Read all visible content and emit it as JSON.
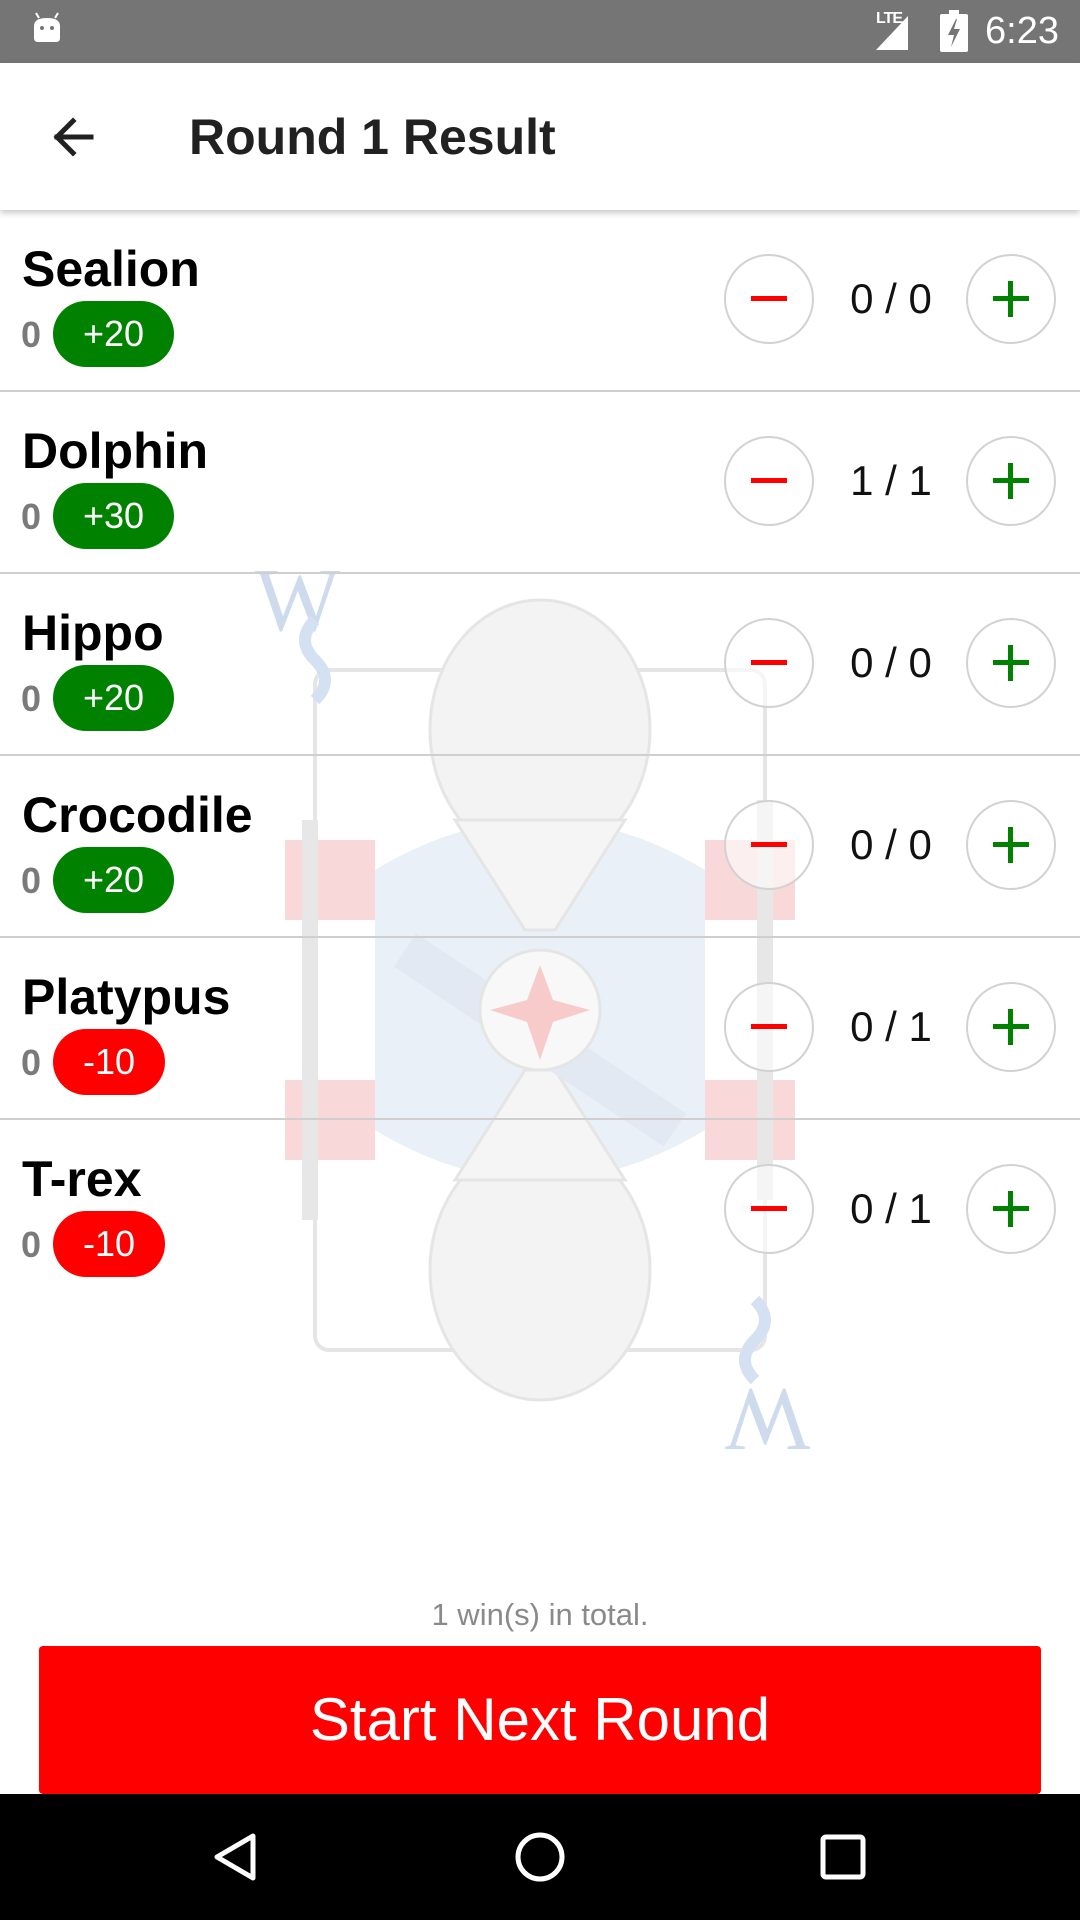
{
  "status_bar": {
    "network": "LTE",
    "time": "6:23",
    "icons": [
      "android-debug-icon",
      "signal-icon",
      "battery-charging-icon"
    ]
  },
  "app_bar": {
    "title": "Round 1 Result",
    "back_icon": "arrow-back-icon"
  },
  "colors": {
    "accent": "#ff0000",
    "positive": "#008200",
    "negative": "#ff0000",
    "status_bar": "#757575",
    "nav_bar": "#000000"
  },
  "players": [
    {
      "name": "Sealion",
      "score": "0",
      "delta": "+20",
      "delta_type": "positive",
      "tricks": "0 / 0"
    },
    {
      "name": "Dolphin",
      "score": "0",
      "delta": "+30",
      "delta_type": "positive",
      "tricks": "1 / 1"
    },
    {
      "name": "Hippo",
      "score": "0",
      "delta": "+20",
      "delta_type": "positive",
      "tricks": "0 / 0"
    },
    {
      "name": "Crocodile",
      "score": "0",
      "delta": "+20",
      "delta_type": "positive",
      "tricks": "0 / 0"
    },
    {
      "name": "Platypus",
      "score": "0",
      "delta": "-10",
      "delta_type": "negative",
      "tricks": "0 / 1"
    },
    {
      "name": "T-rex",
      "score": "0",
      "delta": "-10",
      "delta_type": "negative",
      "tricks": "0 / 1"
    }
  ],
  "footer": {
    "total_wins": "1 win(s) in total.",
    "next_round_label": "Start Next Round"
  },
  "background": {
    "watermark_icon": "wizard-card-icon",
    "card_letter": "W"
  },
  "nav_bar": {
    "icons": [
      "back-triangle-icon",
      "home-circle-icon",
      "recents-square-icon"
    ]
  }
}
